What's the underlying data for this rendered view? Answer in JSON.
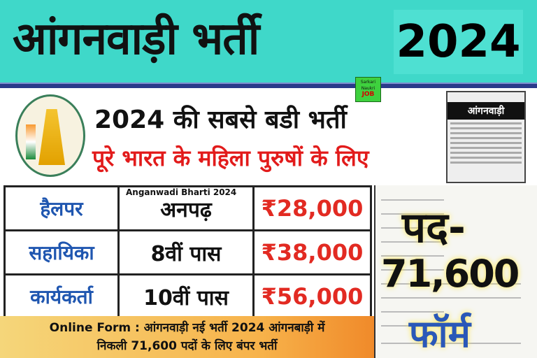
{
  "header": {
    "title": "आंगनवाड़ी भर्ती",
    "year": "2024"
  },
  "logo": {
    "line1": "Sarkari",
    "line2": "Naukri",
    "line3": "JOB"
  },
  "subheading": {
    "line1": "2024 की सबसे बडी भर्ती",
    "line2": "पूरे भारत के महिला पुरुषों के लिए"
  },
  "newspaper": {
    "heading": "आंगनवाड़ी"
  },
  "table": {
    "label": "Anganwadi Bharti 2024",
    "rows": [
      {
        "post": "हैलपर",
        "qualification": "अनपढ़",
        "salary": "₹28,000"
      },
      {
        "post": "सहायिका",
        "qualification": "8वीं पास",
        "salary": "₹38,000"
      },
      {
        "post": "कार्यकर्ता",
        "qualification": "10वीं पास",
        "salary": "₹56,000"
      }
    ]
  },
  "form_panel": {
    "posts_label": "पद-",
    "posts_count": "71,600",
    "form_label": "फॉर्म"
  },
  "banner": {
    "line1": "Online Form : आंगनवाड़ी नई भर्ती 2024 आंगनबाड़ी में",
    "line2": "निकली 71,600 पदों के लिए बंपर भर्ती"
  },
  "colors": {
    "teal": "#3fd8c9",
    "red": "#e22a22",
    "blue": "#1f56b0",
    "navy": "#2a3a8a"
  }
}
